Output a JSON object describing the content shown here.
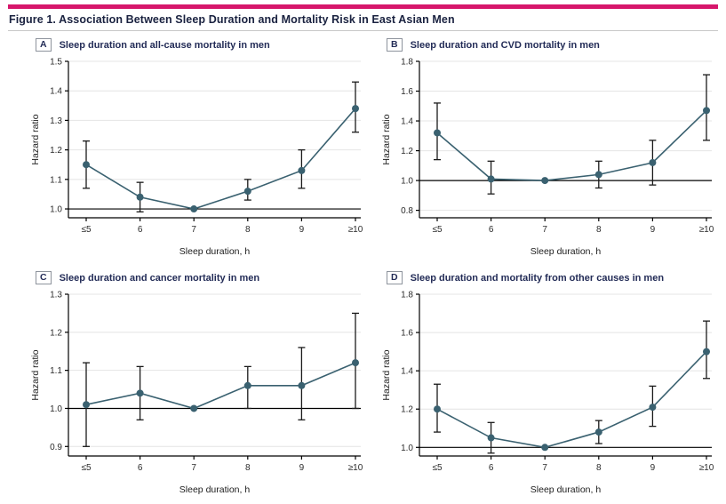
{
  "figure": {
    "title": "Figure 1. Association Between Sleep Duration and Mortality Risk in East Asian Men"
  },
  "colors": {
    "accent_bar": "#d6166b",
    "title_text": "#1a2240",
    "panel_title_text": "#232c57",
    "series": "#3a6170",
    "error_bar": "#1a1a1a",
    "gridline": "#e4e4e4",
    "reference_line": "#000000"
  },
  "chart_data": [
    {
      "panel_label": "A",
      "title": "Sleep duration and all-cause mortality in men",
      "type": "line",
      "categories": [
        "≤5",
        "6",
        "7",
        "8",
        "9",
        "≥10"
      ],
      "xlabel": "Sleep duration, h",
      "ylabel": "Hazard ratio",
      "yticks": [
        1.0,
        1.1,
        1.2,
        1.3,
        1.4,
        1.5
      ],
      "ylim": [
        0.97,
        1.5
      ],
      "reference_line": 1.0,
      "reference_category": "7",
      "grid": true,
      "legend": "none",
      "values": [
        1.15,
        1.04,
        1.0,
        1.06,
        1.13,
        1.34
      ],
      "ci_low": [
        1.07,
        0.99,
        null,
        1.03,
        1.07,
        1.26
      ],
      "ci_high": [
        1.23,
        1.09,
        null,
        1.1,
        1.2,
        1.43
      ]
    },
    {
      "panel_label": "B",
      "title": "Sleep duration and CVD mortality in men",
      "type": "line",
      "categories": [
        "≤5",
        "6",
        "7",
        "8",
        "9",
        "≥10"
      ],
      "xlabel": "Sleep duration, h",
      "ylabel": "Hazard ratio",
      "yticks": [
        0.8,
        1.0,
        1.2,
        1.4,
        1.6,
        1.8
      ],
      "ylim": [
        0.75,
        1.8
      ],
      "reference_line": 1.0,
      "reference_category": "7",
      "grid": true,
      "legend": "none",
      "values": [
        1.32,
        1.01,
        1.0,
        1.04,
        1.12,
        1.47
      ],
      "ci_low": [
        1.14,
        0.91,
        null,
        0.95,
        0.97,
        1.27
      ],
      "ci_high": [
        1.52,
        1.13,
        null,
        1.13,
        1.27,
        1.71
      ]
    },
    {
      "panel_label": "C",
      "title": "Sleep duration and cancer mortality in men",
      "type": "line",
      "categories": [
        "≤5",
        "6",
        "7",
        "8",
        "9",
        "≥10"
      ],
      "xlabel": "Sleep duration, h",
      "ylabel": "Hazard ratio",
      "yticks": [
        0.9,
        1.0,
        1.1,
        1.2,
        1.3
      ],
      "ylim": [
        0.875,
        1.3
      ],
      "reference_line": 1.0,
      "reference_category": "7",
      "grid": true,
      "legend": "none",
      "values": [
        1.01,
        1.04,
        1.0,
        1.06,
        1.06,
        1.12
      ],
      "ci_low": [
        0.9,
        0.97,
        null,
        1.0,
        0.97,
        1.0
      ],
      "ci_high": [
        1.12,
        1.11,
        null,
        1.11,
        1.16,
        1.25
      ]
    },
    {
      "panel_label": "D",
      "title": "Sleep duration and mortality from other causes in men",
      "type": "line",
      "categories": [
        "≤5",
        "6",
        "7",
        "8",
        "9",
        "≥10"
      ],
      "xlabel": "Sleep duration, h",
      "ylabel": "Hazard ratio",
      "yticks": [
        1.0,
        1.2,
        1.4,
        1.6,
        1.8
      ],
      "ylim": [
        0.955,
        1.8
      ],
      "reference_line": 1.0,
      "reference_category": "7",
      "grid": true,
      "legend": "none",
      "values": [
        1.2,
        1.05,
        1.0,
        1.08,
        1.21,
        1.5
      ],
      "ci_low": [
        1.08,
        0.97,
        null,
        1.02,
        1.11,
        1.36
      ],
      "ci_high": [
        1.33,
        1.13,
        null,
        1.14,
        1.32,
        1.66
      ]
    }
  ]
}
